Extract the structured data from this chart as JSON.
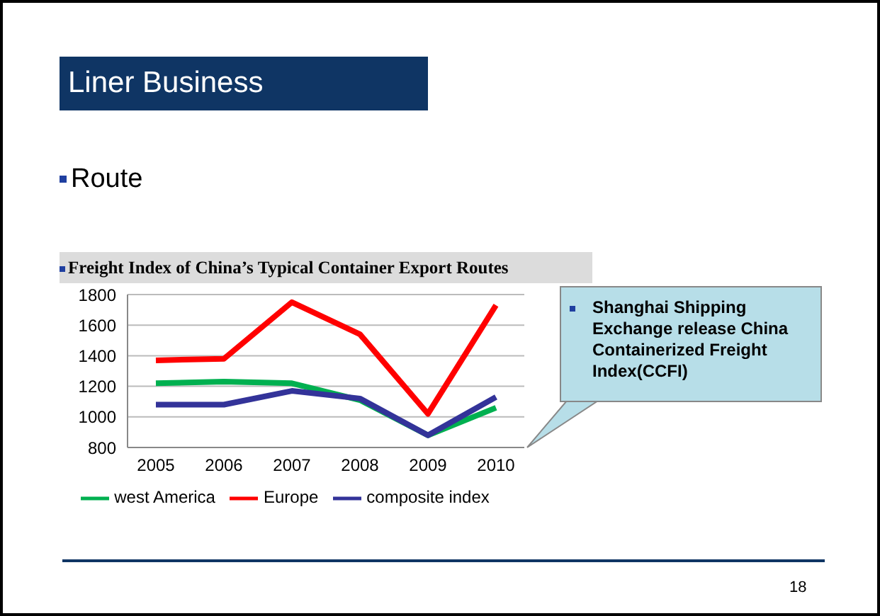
{
  "chart_data": {
    "type": "line",
    "title": "Freight Index of China’s Typical Container Export Routes",
    "annotations": [
      "Liner Business",
      "Route",
      "Shanghai Shipping Exchange release China Containerized Freight Index(CCFI)",
      "18"
    ],
    "categories": [
      "2005",
      "2006",
      "2007",
      "2008",
      "2009",
      "2010"
    ],
    "series": [
      {
        "name": "west America",
        "color": "#00b050",
        "values": [
          1220,
          1230,
          1220,
          1110,
          880,
          1060
        ]
      },
      {
        "name": "Europe",
        "color": "#ff0000",
        "values": [
          1370,
          1380,
          1750,
          1540,
          1020,
          1730
        ]
      },
      {
        "name": "composite index",
        "color": "#333399",
        "values": [
          1080,
          1080,
          1170,
          1120,
          880,
          1130
        ]
      }
    ],
    "ylim": [
      800,
      1800
    ],
    "yticks": [
      800,
      1000,
      1200,
      1400,
      1600,
      1800
    ],
    "grid": "y",
    "legend": "bottom",
    "marker": "none",
    "line_style": "solid"
  }
}
